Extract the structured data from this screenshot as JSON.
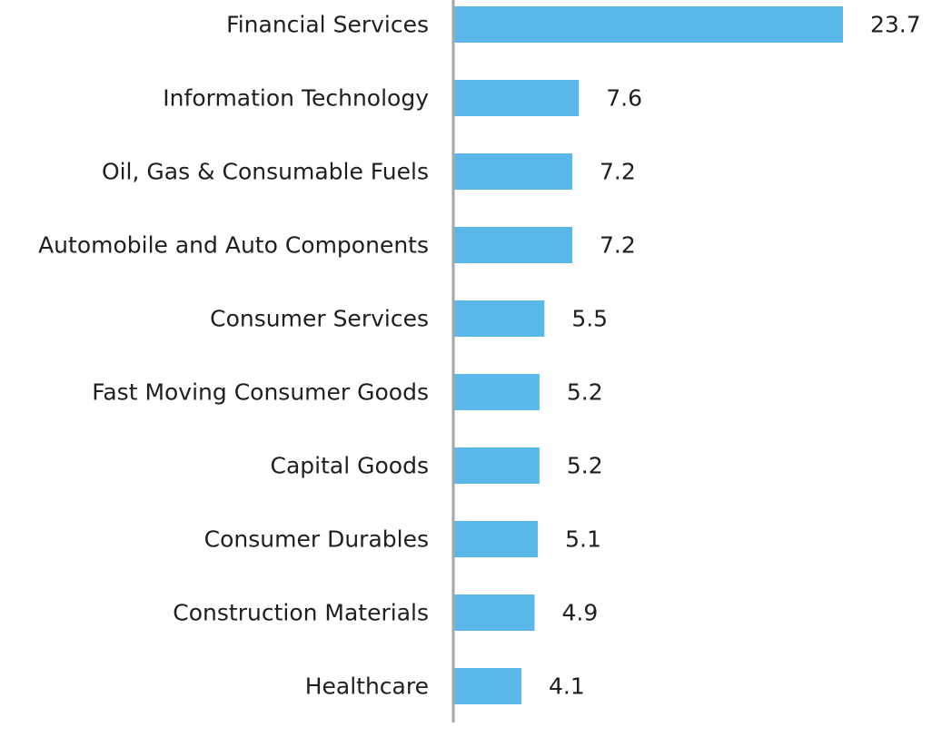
{
  "chart_data": {
    "type": "bar",
    "orientation": "horizontal",
    "categories": [
      "Financial Services",
      "Information Technology",
      "Oil, Gas & Consumable Fuels",
      "Automobile and Auto Components",
      "Consumer Services",
      "Fast Moving Consumer Goods",
      "Capital Goods",
      "Consumer Durables",
      "Construction Materials",
      "Healthcare"
    ],
    "values": [
      23.7,
      7.6,
      7.2,
      7.2,
      5.5,
      5.2,
      5.2,
      5.1,
      4.9,
      4.1
    ],
    "value_labels": [
      "23.7",
      "7.6",
      "7.2",
      "7.2",
      "5.5",
      "5.2",
      "5.2",
      "5.1",
      "4.9",
      "4.1"
    ],
    "title": "",
    "xlabel": "",
    "ylabel": "",
    "xlim": [
      0,
      23.7
    ],
    "grid": false,
    "legend": "none",
    "colors": {
      "bar": "#59b8e8",
      "axis": "#a6a6a6",
      "text": "#1f1f1f"
    }
  }
}
